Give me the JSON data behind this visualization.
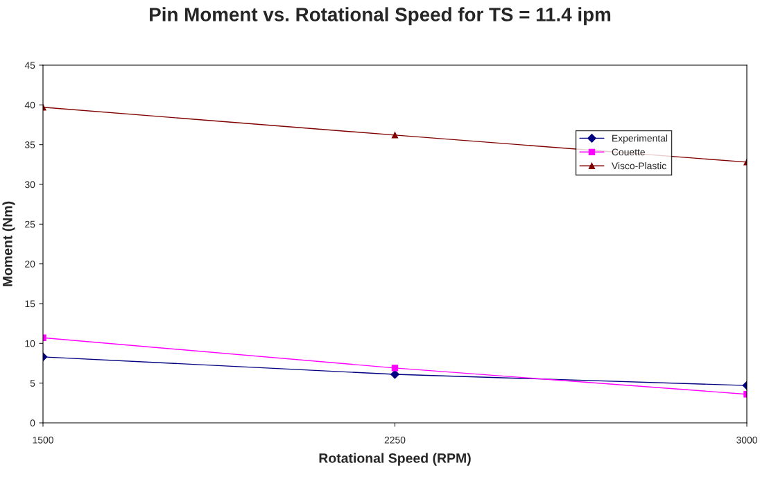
{
  "chart_data": {
    "type": "line",
    "title": "Pin Moment vs. Rotational Speed for TS = 11.4 ipm",
    "xlabel": "Rotational Speed (RPM)",
    "ylabel": "Moment (Nm)",
    "x": [
      1500,
      2250,
      3000
    ],
    "xlim": [
      1500,
      3000
    ],
    "xticks": [
      1500,
      2250,
      3000
    ],
    "ylim": [
      0,
      45
    ],
    "yticks": [
      0,
      5,
      10,
      15,
      20,
      25,
      30,
      35,
      40,
      45
    ],
    "grid": false,
    "legend": "top right",
    "series": [
      {
        "name": "Experimental",
        "color": "#000080",
        "marker": "diamond",
        "values": [
          8.3,
          6.1,
          4.7
        ]
      },
      {
        "name": "Couette",
        "color": "#ff00ff",
        "marker": "square",
        "values": [
          10.7,
          6.9,
          3.6
        ]
      },
      {
        "name": "Visco-Plastic",
        "color": "#800000",
        "marker": "triangle",
        "values": [
          39.7,
          36.2,
          32.8
        ]
      }
    ]
  }
}
